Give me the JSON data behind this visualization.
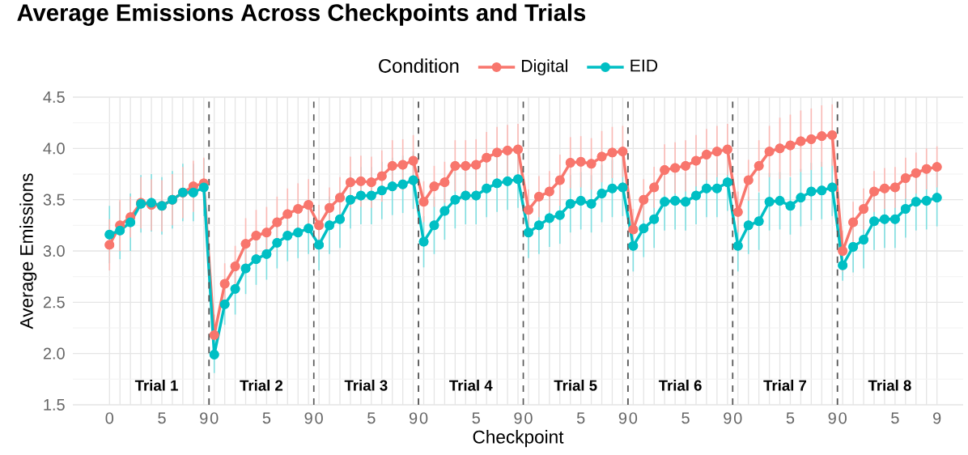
{
  "chart_data": {
    "type": "line",
    "title": "Average Emissions Across Checkpoints and Trials",
    "xlabel": "Checkpoint",
    "ylabel": "Average Emissions",
    "legend_title": "Condition",
    "legend": "top",
    "marker": "circle",
    "line_style": "solid",
    "grid": true,
    "categories": [
      "0",
      null,
      null,
      null,
      null,
      "5",
      null,
      null,
      null,
      "9",
      "0",
      null,
      null,
      null,
      null,
      "5",
      null,
      null,
      null,
      "9",
      "0",
      null,
      null,
      null,
      null,
      "5",
      null,
      null,
      null,
      "9",
      "0",
      null,
      null,
      null,
      null,
      "5",
      null,
      null,
      null,
      "9",
      "0",
      null,
      null,
      null,
      null,
      "5",
      null,
      null,
      null,
      "9",
      "0",
      null,
      null,
      null,
      null,
      "5",
      null,
      null,
      null,
      "9",
      "0",
      null,
      null,
      null,
      null,
      "5",
      null,
      null,
      null,
      "9",
      "0",
      null,
      null,
      null,
      null,
      "5",
      null,
      null,
      null,
      "9"
    ],
    "series": [
      {
        "name": "Digital",
        "color": "#f8766d",
        "values": [
          3.06,
          3.25,
          3.33,
          3.47,
          3.45,
          3.44,
          3.5,
          3.57,
          3.63,
          3.66,
          2.18,
          2.68,
          2.85,
          3.07,
          3.15,
          3.18,
          3.28,
          3.36,
          3.41,
          3.45,
          3.25,
          3.42,
          3.52,
          3.67,
          3.68,
          3.67,
          3.73,
          3.83,
          3.84,
          3.88,
          3.48,
          3.63,
          3.67,
          3.83,
          3.83,
          3.84,
          3.91,
          3.96,
          3.98,
          3.99,
          3.4,
          3.53,
          3.58,
          3.69,
          3.86,
          3.87,
          3.85,
          3.92,
          3.96,
          3.97,
          3.21,
          3.5,
          3.62,
          3.79,
          3.81,
          3.83,
          3.88,
          3.94,
          3.97,
          3.99,
          3.38,
          3.69,
          3.83,
          3.97,
          4.0,
          4.03,
          4.07,
          4.09,
          4.12,
          4.13,
          3.0,
          3.28,
          3.41,
          3.58,
          3.61,
          3.62,
          3.71,
          3.76,
          3.8,
          3.82
        ],
        "errors": [
          0.25,
          0.25,
          0.2,
          0.25,
          0.25,
          0.25,
          0.25,
          0.25,
          0.25,
          0.25,
          0.2,
          0.2,
          0.2,
          0.25,
          0.25,
          0.25,
          0.25,
          0.25,
          0.25,
          0.25,
          0.2,
          0.2,
          0.2,
          0.25,
          0.25,
          0.25,
          0.25,
          0.25,
          0.25,
          0.25,
          0.2,
          0.2,
          0.2,
          0.25,
          0.25,
          0.25,
          0.25,
          0.25,
          0.25,
          0.25,
          0.2,
          0.2,
          0.2,
          0.25,
          0.25,
          0.25,
          0.25,
          0.25,
          0.25,
          0.25,
          0.2,
          0.2,
          0.2,
          0.25,
          0.25,
          0.25,
          0.25,
          0.25,
          0.25,
          0.25,
          0.2,
          0.2,
          0.25,
          0.25,
          0.3,
          0.3,
          0.3,
          0.3,
          0.3,
          0.3,
          0.2,
          0.2,
          0.2,
          0.2,
          0.2,
          0.2,
          0.2,
          0.2,
          0.2,
          0.2
        ]
      },
      {
        "name": "EID",
        "color": "#00bfc4",
        "values": [
          3.16,
          3.2,
          3.28,
          3.46,
          3.47,
          3.44,
          3.5,
          3.57,
          3.57,
          3.62,
          1.99,
          2.48,
          2.63,
          2.83,
          2.92,
          2.97,
          3.08,
          3.15,
          3.18,
          3.22,
          3.06,
          3.25,
          3.31,
          3.5,
          3.54,
          3.54,
          3.59,
          3.63,
          3.65,
          3.69,
          3.09,
          3.25,
          3.39,
          3.5,
          3.54,
          3.54,
          3.61,
          3.66,
          3.68,
          3.7,
          3.18,
          3.25,
          3.32,
          3.35,
          3.46,
          3.49,
          3.46,
          3.56,
          3.61,
          3.62,
          3.05,
          3.22,
          3.31,
          3.48,
          3.49,
          3.48,
          3.54,
          3.61,
          3.61,
          3.67,
          3.05,
          3.25,
          3.29,
          3.48,
          3.49,
          3.44,
          3.52,
          3.58,
          3.59,
          3.62,
          2.86,
          3.04,
          3.11,
          3.29,
          3.31,
          3.31,
          3.41,
          3.48,
          3.49,
          3.52
        ],
        "errors": [
          0.28,
          0.28,
          0.28,
          0.28,
          0.28,
          0.28,
          0.28,
          0.28,
          0.28,
          0.28,
          0.18,
          0.2,
          0.25,
          0.25,
          0.25,
          0.25,
          0.25,
          0.25,
          0.25,
          0.25,
          0.25,
          0.28,
          0.28,
          0.28,
          0.28,
          0.28,
          0.28,
          0.28,
          0.28,
          0.28,
          0.25,
          0.28,
          0.28,
          0.28,
          0.28,
          0.28,
          0.28,
          0.28,
          0.28,
          0.28,
          0.25,
          0.28,
          0.28,
          0.28,
          0.28,
          0.28,
          0.28,
          0.28,
          0.28,
          0.28,
          0.25,
          0.28,
          0.28,
          0.28,
          0.28,
          0.28,
          0.28,
          0.28,
          0.28,
          0.28,
          0.25,
          0.28,
          0.28,
          0.28,
          0.28,
          0.28,
          0.28,
          0.28,
          0.28,
          0.28,
          0.15,
          0.25,
          0.28,
          0.28,
          0.28,
          0.28,
          0.28,
          0.28,
          0.28,
          0.28
        ]
      }
    ],
    "ylim": [
      1.5,
      4.5
    ],
    "yticks": [
      {
        "value": 1.5,
        "label": "1.5"
      },
      {
        "value": 2,
        "label": "2.0"
      },
      {
        "value": 2.5,
        "label": "2.5"
      },
      {
        "value": 3,
        "label": "3.0"
      },
      {
        "value": 3.5,
        "label": "3.5"
      },
      {
        "value": 4,
        "label": "4.0"
      },
      {
        "value": 4.5,
        "label": "4.5"
      }
    ],
    "annotations": [
      "Trial 1",
      "Trial 2",
      "Trial 3",
      "Trial 4",
      "Trial 5",
      "Trial 6",
      "Trial 7",
      "Trial 8"
    ]
  }
}
